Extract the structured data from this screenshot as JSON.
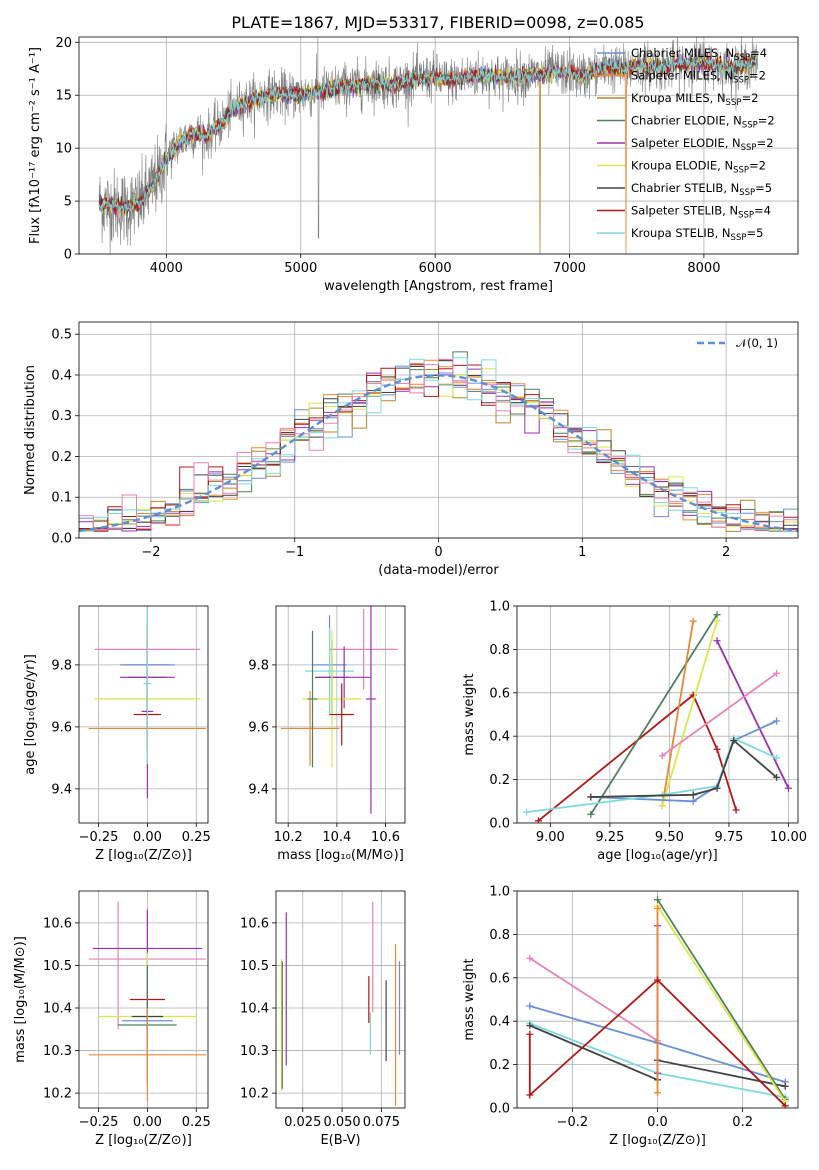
{
  "figure": {
    "title": "PLATE=1867, MJD=53317, FIBERID=0098, z=0.085"
  },
  "colors": {
    "Chabrier MILES": "#6a8fd6",
    "Salpeter MILES": "#e8883a",
    "Kroupa MILES": "#b8862b",
    "Chabrier ELODIE": "#4f7f5f",
    "Salpeter ELODIE": "#9b30b0",
    "Kroupa ELODIE": "#d9e84a",
    "Chabrier STELIB": "#444444",
    "Salpeter STELIB": "#b01818",
    "Kroupa STELIB": "#7fd8dc",
    "pink": "#e882b8",
    "data": "#808080",
    "gaussian": "#5b8fd6"
  },
  "chart_data": [
    {
      "id": "spectrum",
      "type": "line",
      "title": "PLATE=1867, MJD=53317, FIBERID=0098, z=0.085",
      "xlabel": "wavelength [Angstrom, rest frame]",
      "ylabel": "Flux [fλ10⁻¹⁷ erg cm⁻² s⁻¹ A⁻¹]",
      "xlim": [
        3350,
        8700
      ],
      "ylim": [
        0,
        20.5
      ],
      "xticks": [
        4000,
        5000,
        6000,
        7000,
        8000
      ],
      "yticks": [
        0,
        5,
        10,
        15,
        20
      ],
      "legend_position": "top-right",
      "legend": [
        {
          "label": "Chabrier MILES, N",
          "sub": "SSP",
          "suffix": "=4",
          "color": "#6a8fd6"
        },
        {
          "label": "Salpeter MILES, N",
          "sub": "SSP",
          "suffix": "=2",
          "color": "#e8883a"
        },
        {
          "label": "Kroupa MILES, N",
          "sub": "SSP",
          "suffix": "=2",
          "color": "#b8862b"
        },
        {
          "label": "Chabrier ELODIE, N",
          "sub": "SSP",
          "suffix": "=2",
          "color": "#4f7f5f"
        },
        {
          "label": "Salpeter ELODIE, N",
          "sub": "SSP",
          "suffix": "=2",
          "color": "#9b30b0"
        },
        {
          "label": "Kroupa ELODIE, N",
          "sub": "SSP",
          "suffix": "=2",
          "color": "#d9e84a"
        },
        {
          "label": "Chabrier STELIB, N",
          "sub": "SSP",
          "suffix": "=5",
          "color": "#444444"
        },
        {
          "label": "Salpeter STELIB, N",
          "sub": "SSP",
          "suffix": "=4",
          "color": "#b01818"
        },
        {
          "label": "Kroupa STELIB, N",
          "sub": "SSP",
          "suffix": "=5",
          "color": "#7fd8dc"
        }
      ],
      "continuum": {
        "x": [
          3500,
          3600,
          3700,
          3800,
          3900,
          4000,
          4100,
          4200,
          4300,
          4400,
          4500,
          4600,
          4700,
          4800,
          4900,
          5000,
          5100,
          5200,
          5300,
          5400,
          5500,
          5600,
          5700,
          5800,
          5900,
          6000,
          6100,
          6200,
          6300,
          6400,
          6500,
          6600,
          6700,
          6800,
          6900,
          7000,
          7100,
          7200,
          7300,
          7400,
          7500,
          7600,
          7700,
          7800,
          7900,
          8000,
          8100,
          8200,
          8300,
          8400
        ],
        "y": [
          4.8,
          4.5,
          4.4,
          4.7,
          6.5,
          9.0,
          10.6,
          11.4,
          11.2,
          12.2,
          13.8,
          14.4,
          14.8,
          15.2,
          15.0,
          15.1,
          15.3,
          15.5,
          15.8,
          15.9,
          16.1,
          16.2,
          16.0,
          16.4,
          16.6,
          16.7,
          16.3,
          16.6,
          16.9,
          16.8,
          16.6,
          16.8,
          16.9,
          17.0,
          17.2,
          17.1,
          16.8,
          17.3,
          17.6,
          17.4,
          17.7,
          17.8,
          17.6,
          17.9,
          18.0,
          18.1,
          17.8,
          17.6,
          17.9,
          18.1
        ]
      }
    },
    {
      "id": "residuals",
      "type": "histogram",
      "xlabel": "(data-model)/error",
      "ylabel": "Normed distribution",
      "xlim": [
        -2.5,
        2.5
      ],
      "ylim": [
        0,
        0.53
      ],
      "xticks": [
        -2,
        -1,
        0,
        1,
        2
      ],
      "yticks": [
        0.0,
        0.1,
        0.2,
        0.3,
        0.4,
        0.5
      ],
      "bin_width": 0.1,
      "legend_position": "top-right",
      "legend": [
        {
          "label": "𝒩(0, 1)",
          "color": "#5b8fd6",
          "style": "dashed"
        }
      ]
    },
    {
      "id": "z-age",
      "type": "errorbar",
      "xlabel": "Z [log₁₀(Z/Z⊙)]",
      "ylabel": "age  [log₁₀(age/yr)]",
      "xlim": [
        -0.35,
        0.31
      ],
      "ylim": [
        9.29,
        9.99
      ],
      "xticks": [
        -0.25,
        0.0,
        0.25
      ],
      "yticks": [
        9.4,
        9.6,
        9.8
      ],
      "points": [
        {
          "x": 0.0,
          "y": 9.8,
          "xerr": 0.11,
          "yerr": 0.17,
          "color": "#e882b8"
        },
        {
          "x": 0.0,
          "y": 9.85,
          "xerr": 0.27,
          "yerr": 0.38,
          "color": "#e882b8"
        },
        {
          "x": 0.0,
          "y": 9.8,
          "xerr": 0.14,
          "yerr": 0.18,
          "color": "#6a8fd6"
        },
        {
          "x": 0.0,
          "y": 9.76,
          "xerr": 0.1,
          "yerr": 0.12,
          "color": "#444444"
        },
        {
          "x": 0.0,
          "y": 9.76,
          "xerr": 0.14,
          "yerr": 0.14,
          "color": "#9b30b0"
        },
        {
          "x": 0.0,
          "y": 9.69,
          "xerr": 0.27,
          "yerr": 0.22,
          "color": "#d9e84a"
        },
        {
          "x": 0.0,
          "y": 9.64,
          "xerr": 0.07,
          "yerr": 0.11,
          "color": "#b01818"
        },
        {
          "x": 0.0,
          "y": 9.595,
          "xerr": 0.3,
          "yerr": 0.05,
          "color": "#e8883a"
        },
        {
          "x": 0.0,
          "y": 9.65,
          "xerr": 0.03,
          "yerr": 0.28,
          "color": "#9b30b0"
        },
        {
          "x": 0.0,
          "y": 9.74,
          "xerr": 0.02,
          "yerr": 0.26,
          "color": "#7fd8dc"
        }
      ]
    },
    {
      "id": "mass-age",
      "type": "errorbar",
      "xlabel": "mass [log₁₀(M/M⊙)]",
      "ylabel": "",
      "xlim": [
        10.15,
        10.68
      ],
      "ylim": [
        9.29,
        9.99
      ],
      "xticks": [
        10.2,
        10.4,
        10.6
      ],
      "yticks": [
        9.4,
        9.6,
        9.8
      ],
      "points": [
        {
          "x": 10.51,
          "y": 9.85,
          "xerr": 0.14,
          "yerr": 0.13,
          "color": "#e882b8"
        },
        {
          "x": 10.37,
          "y": 9.8,
          "xerr": 0.07,
          "yerr": 0.16,
          "color": "#6a8fd6"
        },
        {
          "x": 10.37,
          "y": 9.78,
          "xerr": 0.1,
          "yerr": 0.14,
          "color": "#7fd8dc"
        },
        {
          "x": 10.38,
          "y": 9.76,
          "xerr": 0.07,
          "yerr": 0.12,
          "color": "#444444"
        },
        {
          "x": 10.43,
          "y": 9.76,
          "xerr": 0.11,
          "yerr": 0.1,
          "color": "#9b30b0"
        },
        {
          "x": 10.38,
          "y": 9.69,
          "xerr": 0.12,
          "yerr": 0.22,
          "color": "#d9e84a"
        },
        {
          "x": 10.42,
          "y": 9.64,
          "xerr": 0.05,
          "yerr": 0.1,
          "color": "#b01818"
        },
        {
          "x": 10.29,
          "y": 9.595,
          "xerr": 0.12,
          "yerr": 0.12,
          "color": "#e8883a"
        },
        {
          "x": 10.54,
          "y": 9.69,
          "xerr": 0.02,
          "yerr": 0.37,
          "color": "#9b30b0"
        },
        {
          "x": 10.3,
          "y": 9.69,
          "xerr": 0.02,
          "yerr": 0.22,
          "color": "#4f7f5f"
        }
      ]
    },
    {
      "id": "age-weight",
      "type": "line",
      "xlabel": "age  [log₁₀(age/yr)]",
      "ylabel": "mass weight",
      "xlim": [
        8.86,
        10.04
      ],
      "ylim": [
        0,
        1.0
      ],
      "xticks": [
        9.0,
        9.25,
        9.5,
        9.75,
        10.0
      ],
      "yticks": [
        0.0,
        0.2,
        0.4,
        0.6,
        0.8,
        1.0
      ],
      "series": [
        {
          "color": "#b01818",
          "points": [
            [
              8.95,
              0.01
            ],
            [
              9.6,
              0.59
            ],
            [
              9.7,
              0.34
            ],
            [
              9.78,
              0.06
            ]
          ]
        },
        {
          "color": "#4f7f5f",
          "points": [
            [
              9.17,
              0.04
            ],
            [
              9.7,
              0.96
            ]
          ]
        },
        {
          "color": "#e8883a",
          "points": [
            [
              9.47,
              0.08
            ],
            [
              9.6,
              0.93
            ]
          ]
        },
        {
          "color": "#d9e84a",
          "points": [
            [
              9.47,
              0.08
            ],
            [
              9.7,
              0.93
            ]
          ]
        },
        {
          "color": "#9b30b0",
          "points": [
            [
              9.7,
              0.84
            ],
            [
              10.0,
              0.16
            ]
          ]
        },
        {
          "color": "#e882b8",
          "points": [
            [
              9.47,
              0.31
            ],
            [
              9.95,
              0.69
            ]
          ]
        },
        {
          "color": "#6a8fd6",
          "points": [
            [
              9.17,
              0.12
            ],
            [
              9.6,
              0.1
            ],
            [
              9.7,
              0.17
            ],
            [
              9.77,
              0.38
            ],
            [
              9.95,
              0.47
            ]
          ]
        },
        {
          "color": "#7fd8dc",
          "points": [
            [
              8.9,
              0.05
            ],
            [
              9.47,
              0.13
            ],
            [
              9.7,
              0.17
            ],
            [
              9.77,
              0.39
            ],
            [
              9.95,
              0.3
            ]
          ]
        },
        {
          "color": "#444444",
          "points": [
            [
              9.17,
              0.12
            ],
            [
              9.6,
              0.13
            ],
            [
              9.7,
              0.16
            ],
            [
              9.77,
              0.38
            ],
            [
              9.95,
              0.21
            ]
          ]
        }
      ]
    },
    {
      "id": "z-mass",
      "type": "errorbar",
      "xlabel": "Z [log₁₀(Z/Z⊙)]",
      "ylabel": "mass [log₁₀(M/M⊙)]",
      "xlim": [
        -0.35,
        0.31
      ],
      "ylim": [
        10.165,
        10.675
      ],
      "xticks": [
        -0.25,
        0.0,
        0.25
      ],
      "yticks": [
        10.2,
        10.3,
        10.4,
        10.5,
        10.6
      ],
      "points": [
        {
          "x": 0.0,
          "y": 10.515,
          "xerr": 0.3,
          "yerr": 0.12,
          "color": "#e882b8"
        },
        {
          "x": -0.15,
          "y": 10.5,
          "xerr": 0.0,
          "yerr": 0.15,
          "color": "#e882b8"
        },
        {
          "x": 0.0,
          "y": 10.54,
          "xerr": 0.28,
          "yerr": 0.09,
          "color": "#9b30b0"
        },
        {
          "x": 0.0,
          "y": 10.42,
          "xerr": 0.09,
          "yerr": 0.07,
          "color": "#b01818"
        },
        {
          "x": 0.0,
          "y": 10.38,
          "xerr": 0.25,
          "yerr": 0.15,
          "color": "#d9e84a"
        },
        {
          "x": 0.0,
          "y": 10.38,
          "xerr": 0.08,
          "yerr": 0.07,
          "color": "#444444"
        },
        {
          "x": 0.0,
          "y": 10.37,
          "xerr": 0.13,
          "yerr": 0.13,
          "color": "#6a8fd6"
        },
        {
          "x": 0.0,
          "y": 10.36,
          "xerr": 0.15,
          "yerr": 0.14,
          "color": "#4f7f5f"
        },
        {
          "x": 0.0,
          "y": 10.29,
          "xerr": 0.3,
          "yerr": 0.11,
          "color": "#e8883a"
        }
      ]
    },
    {
      "id": "ebv-mass",
      "type": "errorbar",
      "xlabel": "E(B-V)",
      "ylabel": "",
      "xlim": [
        0.008,
        0.09
      ],
      "ylim": [
        10.165,
        10.675
      ],
      "xticks": [
        0.025,
        0.05,
        0.075
      ],
      "yticks": [
        10.2,
        10.3,
        10.4,
        10.5,
        10.6
      ],
      "points": [
        {
          "x": 0.0115,
          "y": 10.36,
          "yerr": 0.155,
          "color": "#d9e84a"
        },
        {
          "x": 0.012,
          "y": 10.36,
          "yerr": 0.15,
          "color": "#4f7f5f"
        },
        {
          "x": 0.0145,
          "y": 10.445,
          "yerr": 0.18,
          "color": "#9b30b0"
        },
        {
          "x": 0.067,
          "y": 10.42,
          "yerr": 0.055,
          "color": "#b01818"
        },
        {
          "x": 0.068,
          "y": 10.34,
          "yerr": 0.05,
          "color": "#7fd8dc"
        },
        {
          "x": 0.0695,
          "y": 10.52,
          "yerr": 0.13,
          "color": "#e882b8"
        },
        {
          "x": 0.078,
          "y": 10.37,
          "yerr": 0.095,
          "color": "#444444"
        },
        {
          "x": 0.084,
          "y": 10.36,
          "yerr": 0.19,
          "color": "#e8883a"
        },
        {
          "x": 0.0865,
          "y": 10.4,
          "yerr": 0.11,
          "color": "#6a8fd6"
        }
      ]
    },
    {
      "id": "z-weight",
      "type": "line",
      "xlabel": "Z [log₁₀(Z/Z⊙)]",
      "ylabel": "mass weight",
      "xlim": [
        -0.33,
        0.33
      ],
      "ylim": [
        0,
        1.0
      ],
      "xticks": [
        -0.2,
        0.0,
        0.2
      ],
      "yticks": [
        0.0,
        0.2,
        0.4,
        0.6,
        0.8,
        1.0
      ],
      "series": [
        {
          "color": "#e882b8",
          "points": [
            [
              -0.3,
              0.69
            ],
            [
              0.0,
              0.31
            ]
          ]
        },
        {
          "color": "#6a8fd6",
          "points": [
            [
              -0.3,
              0.47
            ],
            [
              0.0,
              0.3
            ],
            [
              0.3,
              0.12
            ]
          ]
        },
        {
          "color": "#7fd8dc",
          "points": [
            [
              -0.3,
              0.39
            ],
            [
              0.0,
              0.16
            ],
            [
              0.3,
              0.05
            ]
          ]
        },
        {
          "color": "#444444",
          "points": [
            [
              -0.3,
              0.38
            ],
            [
              0.0,
              0.13
            ],
            [
              0.0,
              0.22
            ],
            [
              0.3,
              0.1
            ]
          ]
        },
        {
          "color": "#4f7f5f",
          "points": [
            [
              0.0,
              0.96
            ],
            [
              0.3,
              0.04
            ]
          ]
        },
        {
          "color": "#d9e84a",
          "points": [
            [
              0.0,
              0.93
            ],
            [
              0.3,
              0.03
            ]
          ]
        },
        {
          "color": "#9b30b0",
          "points": [
            [
              0.0,
              0.84
            ],
            [
              0.0,
              0.16
            ]
          ]
        },
        {
          "color": "#e8883a",
          "points": [
            [
              0.0,
              0.92
            ],
            [
              0.0,
              0.07
            ]
          ]
        },
        {
          "color": "#b01818",
          "points": [
            [
              -0.3,
              0.34
            ],
            [
              -0.3,
              0.06
            ],
            [
              0.0,
              0.59
            ],
            [
              0.3,
              0.01
            ]
          ]
        }
      ]
    }
  ]
}
